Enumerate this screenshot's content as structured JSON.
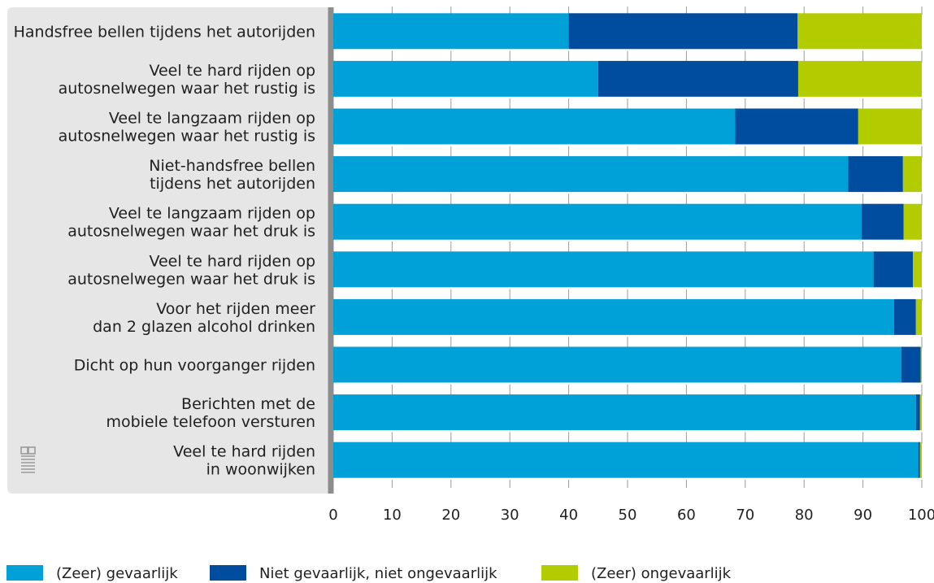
{
  "chart_data": {
    "type": "bar",
    "orientation": "horizontal",
    "stacked": true,
    "categories": [
      "Handsfree bellen tijdens het autorijden",
      "Veel te hard rijden op autosnelwegen waar het rustig is",
      "Veel te langzaam rijden op autosnelwegen waar het rustig is",
      "Niet-handsfree bellen tijdens het autorijden",
      "Veel te langzaam rijden op autosnelwegen waar het druk is",
      "Veel te hard rijden op autosnelwegen waar het druk is",
      "Voor het rijden meer dan 2 glazen alcohol drinken",
      "Dicht op hun voorganger rijden",
      "Berichten met de mobiele telefoon versturen",
      "Veel te hard rijden in woonwijken"
    ],
    "category_lines": [
      [
        "Handsfree bellen tijdens het autorijden"
      ],
      [
        "Veel te hard rijden op",
        "autosnelwegen waar het rustig is"
      ],
      [
        "Veel te langzaam rijden op",
        "autosnelwegen waar het rustig is"
      ],
      [
        "Niet-handsfree bellen",
        "tijdens het autorijden"
      ],
      [
        "Veel te langzaam rijden op",
        "autosnelwegen waar het druk is"
      ],
      [
        "Veel te hard rijden op",
        "autosnelwegen waar het druk is"
      ],
      [
        "Voor het rijden meer",
        "dan 2 glazen alcohol drinken"
      ],
      [
        "Dicht op hun voorganger rijden"
      ],
      [
        "Berichten met de",
        "mobiele telefoon versturen"
      ],
      [
        "Veel te hard rijden",
        "in woonwijken"
      ]
    ],
    "series": [
      {
        "name": "(Zeer) gevaarlijk",
        "color": "#00a1d9",
        "values": [
          40,
          45,
          68.3,
          87.5,
          89.8,
          91.8,
          95.3,
          96.5,
          99,
          99.4
        ]
      },
      {
        "name": "Niet gevaarlijk, niet ongevaarlijk",
        "color": "#004c9e",
        "values": [
          38.9,
          34,
          20.9,
          9.3,
          7.1,
          6.7,
          3.7,
          3.3,
          0.7,
          0.3
        ]
      },
      {
        "name": "(Zeer) ongevaarlijk",
        "color": "#b3cc00",
        "values": [
          21.1,
          21,
          10.8,
          3.2,
          3.1,
          1.5,
          1,
          0.2,
          0.3,
          0.3
        ]
      }
    ],
    "xticks": [
      0,
      10,
      20,
      30,
      40,
      50,
      60,
      70,
      80,
      90,
      100
    ],
    "xlim": [
      0,
      100
    ],
    "grid": "vertical tick marks",
    "legend_position": "bottom"
  },
  "logo": {
    "name": "cbs-logo",
    "text": "cbs"
  }
}
